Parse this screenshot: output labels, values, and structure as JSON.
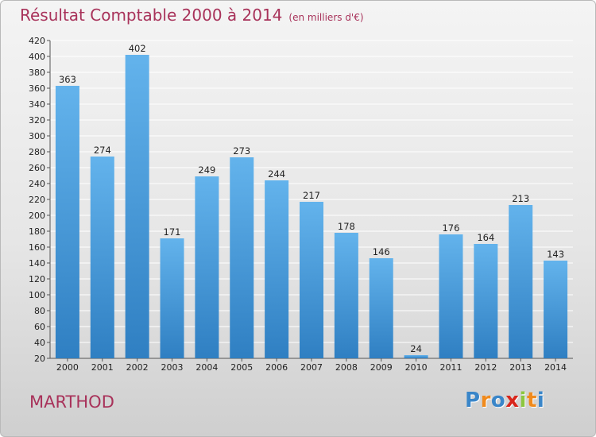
{
  "chart_data": {
    "type": "bar",
    "title": "Résultat Comptable 2000 à 2014",
    "subtitle": "(en milliers d'€)",
    "categories": [
      "2000",
      "2001",
      "2002",
      "2003",
      "2004",
      "2005",
      "2006",
      "2007",
      "2008",
      "2009",
      "2010",
      "2011",
      "2012",
      "2013",
      "2014"
    ],
    "values": [
      363,
      274,
      402,
      171,
      249,
      273,
      244,
      217,
      178,
      146,
      24,
      176,
      164,
      213,
      143
    ],
    "ylim": [
      20,
      420
    ],
    "yticks": [
      20,
      40,
      60,
      80,
      100,
      120,
      140,
      160,
      180,
      200,
      220,
      240,
      260,
      280,
      300,
      320,
      340,
      360,
      380,
      400,
      420
    ],
    "grid": true,
    "bar_color_top": "#63b3ec",
    "bar_color_bottom": "#2f7fc2"
  },
  "commune": "MARTHOD",
  "logo": {
    "letters": [
      "P",
      "r",
      "o",
      "x",
      "i",
      "t",
      "i"
    ],
    "colors": [
      "#3a86c9",
      "#f08a1c",
      "#3a86c9",
      "#d8261c",
      "#8cc63f",
      "#f08a1c",
      "#3a86c9"
    ]
  },
  "colors": {
    "accent": "#a8325a",
    "grid": "#ffffff"
  }
}
